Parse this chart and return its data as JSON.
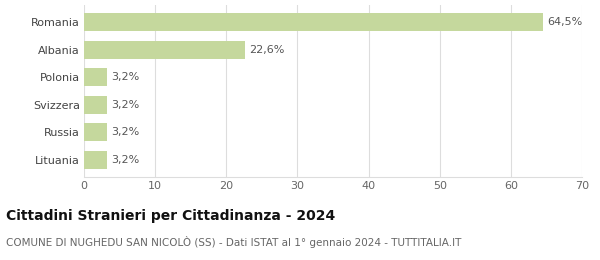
{
  "categories": [
    "Lituania",
    "Russia",
    "Svizzera",
    "Polonia",
    "Albania",
    "Romania"
  ],
  "values": [
    3.2,
    3.2,
    3.2,
    3.2,
    22.6,
    64.5
  ],
  "labels": [
    "3,2%",
    "3,2%",
    "3,2%",
    "3,2%",
    "22,6%",
    "64,5%"
  ],
  "bar_color": "#c5d89d",
  "xlim": [
    0,
    70
  ],
  "xticks": [
    0,
    10,
    20,
    30,
    40,
    50,
    60,
    70
  ],
  "title": "Cittadini Stranieri per Cittadinanza - 2024",
  "subtitle": "COMUNE DI NUGHEDU SAN NICOLÒ (SS) - Dati ISTAT al 1° gennaio 2024 - TUTTITALIA.IT",
  "title_fontsize": 10,
  "subtitle_fontsize": 7.5,
  "label_fontsize": 8,
  "tick_fontsize": 8,
  "background_color": "#ffffff",
  "grid_color": "#dddddd",
  "axes_bg": "#ffffff"
}
